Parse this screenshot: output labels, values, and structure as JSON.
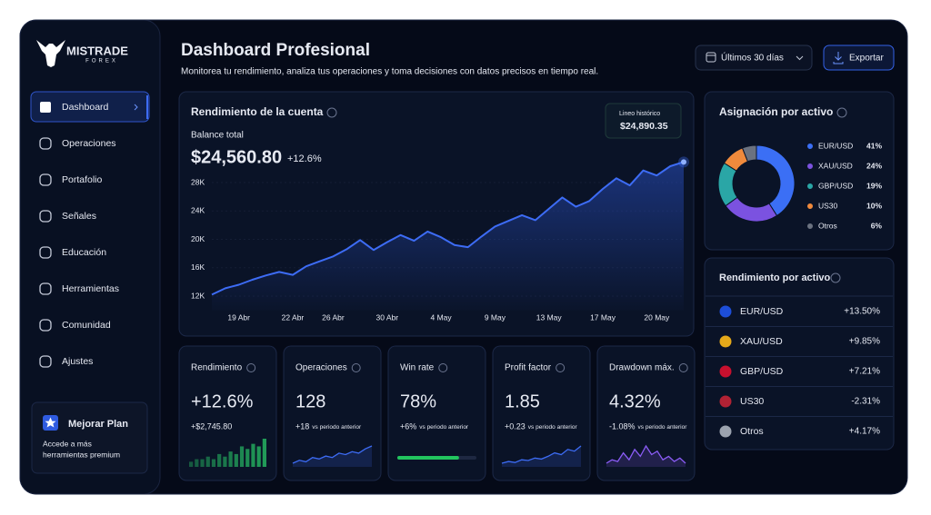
{
  "brand": {
    "name": "MISTRADE",
    "tagline": "FOREX"
  },
  "nav": {
    "items": [
      "Dashboard",
      "Operaciones",
      "Portafolio",
      "Señales",
      "Educación",
      "Herramientas",
      "Comunidad",
      "Ajustes"
    ],
    "active": 0
  },
  "upgrade": {
    "title": "Mejorar Plan",
    "text": [
      "Accede a más",
      "herramientas premium"
    ]
  },
  "header": {
    "title": "Dashboard Profesional",
    "subtitle": "Monitorea tu rendimiento, analiza tus operaciones y toma decisiones con datos precisos en tiempo real.",
    "period": "Últimos 30 días",
    "export": "Exportar"
  },
  "balance_chart": {
    "type": "line",
    "title": "Rendimiento de la cuenta",
    "balance_label": "Balance total",
    "balance": "$24,560.80",
    "change": "+12.6%",
    "tooltip": {
      "label": "Lineo histórico",
      "value": "$24,890.35"
    },
    "categories": [
      null,
      null,
      "19 Abr",
      null,
      null,
      null,
      "22 Abr",
      null,
      null,
      "26 Abr",
      null,
      null,
      null,
      "30 Abr",
      null,
      null,
      null,
      "4 May",
      null,
      null,
      null,
      "9 May",
      null,
      null,
      null,
      "13 May",
      null,
      null,
      null,
      "17 May",
      null,
      null,
      null,
      "20 May",
      null,
      null
    ],
    "values": [
      12200,
      13100,
      13600,
      14300,
      14900,
      15400,
      15000,
      16200,
      16900,
      17600,
      18600,
      19900,
      18500,
      19600,
      20600,
      19800,
      21100,
      20300,
      19200,
      18900,
      20400,
      21800,
      22600,
      23400,
      22700,
      24300,
      25900,
      24600,
      25400,
      27100,
      28600,
      27600,
      29700,
      29000,
      30300,
      30900
    ],
    "color": "#3d6cf5",
    "ylim": [
      10000,
      32000
    ],
    "yticks": [
      {
        "value": 12000,
        "label": "12K"
      },
      {
        "value": 16000,
        "label": "16K"
      },
      {
        "value": 20000,
        "label": "20K"
      },
      {
        "value": 24000,
        "label": "24K"
      },
      {
        "value": 28000,
        "label": "28K"
      }
    ]
  },
  "kpis": [
    {
      "title": "Rendimiento",
      "value": "+12.6%",
      "value_color": "#22c55e",
      "change": "+$2,745.80",
      "chart": "bar",
      "color": "#22a05a",
      "sparkline": [
        2,
        3,
        3,
        4,
        3,
        5,
        4,
        6,
        5,
        8,
        7,
        9,
        8,
        11
      ]
    },
    {
      "title": "Operaciones",
      "value": "128",
      "change": "+18",
      "note": "vs periodo anterior",
      "chart": "line",
      "color": "#3d6cf5",
      "sparkline": [
        3,
        4,
        3.5,
        5,
        4.5,
        5.5,
        5,
        6.5,
        6,
        7,
        6.5,
        8,
        9
      ]
    },
    {
      "title": "Win rate",
      "value": 78,
      "value_label": "78%",
      "xlim": [
        0,
        100
      ],
      "change": "+6%",
      "note": "vs periodo anterior",
      "chart": "progress",
      "color": "#22c55e"
    },
    {
      "title": "Profit factor",
      "value": "1.85",
      "change": "+0.23",
      "note": "vs periodo anterior",
      "chart": "line",
      "color": "#3d6cf5",
      "sparkline": [
        3,
        3.5,
        3.2,
        4,
        3.8,
        4.5,
        4.2,
        5,
        6,
        5.5,
        7,
        6.5,
        8
      ]
    },
    {
      "title": "Drawdown máx.",
      "value": "4.32%",
      "change": "-1.08%",
      "note": "vs periodo anterior",
      "chart": "line",
      "color": "#8b5cf6",
      "sparkline": [
        4,
        5,
        4.5,
        7,
        5,
        8,
        6,
        9,
        6.5,
        7.5,
        5,
        6,
        4.5,
        5.5,
        4
      ]
    }
  ],
  "allocation": {
    "type": "pie",
    "title": "Asignación por activo",
    "categories": [
      "EUR/USD",
      "XAU/USD",
      "GBP/USD",
      "US30",
      "Otros"
    ],
    "values": [
      41,
      24,
      19,
      10,
      6
    ],
    "value_labels": [
      "41%",
      "24%",
      "19%",
      "10%",
      "6%"
    ],
    "colors": [
      "#3b6ff5",
      "#7b52e0",
      "#2aa6a6",
      "#f08a3c",
      "#6b7280"
    ]
  },
  "asset_performance": {
    "title": "Rendimiento por activo",
    "rows": [
      {
        "name": "EUR/USD",
        "change": "+13.50%",
        "positive": true,
        "icon": "#1d4ed8"
      },
      {
        "name": "XAU/USD",
        "change": "+9.85%",
        "positive": true,
        "icon": "#e5a91a"
      },
      {
        "name": "GBP/USD",
        "change": "+7.21%",
        "positive": true,
        "icon": "#c8102e"
      },
      {
        "name": "US30",
        "change": "-2.31%",
        "positive": false,
        "icon": "#b22234"
      },
      {
        "name": "Otros",
        "change": "+4.17%",
        "positive": true,
        "icon": "#9ca3af"
      }
    ]
  }
}
